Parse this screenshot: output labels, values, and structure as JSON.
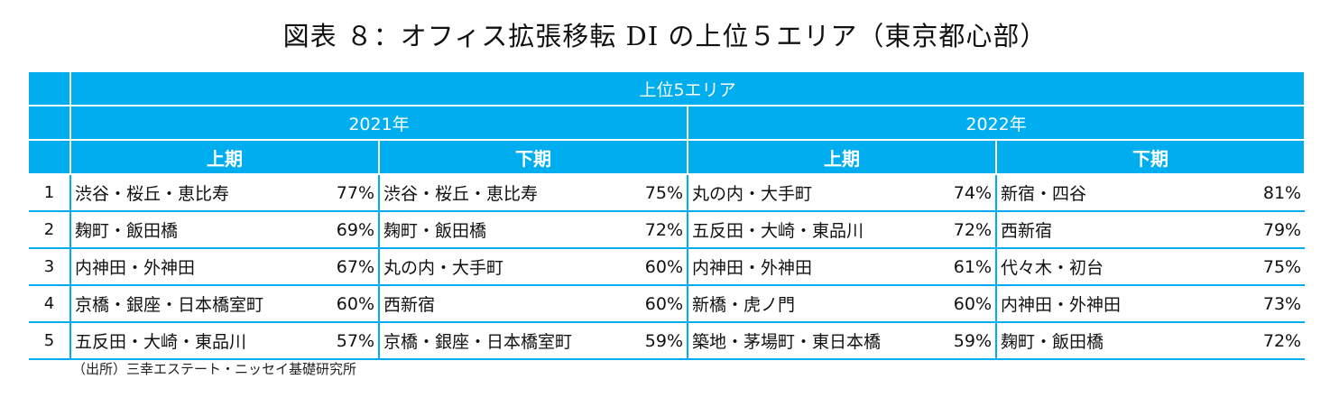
{
  "title": "図表 ８：オフィス拡張移転 DI の上位５エリア（東京都心部）",
  "header": {
    "group": "上位5エリア",
    "years": [
      "2021年",
      "2022年"
    ],
    "halves": [
      "上期",
      "下期",
      "上期",
      "下期"
    ]
  },
  "rows": [
    {
      "rank": "1",
      "cells": [
        {
          "area": "渋谷・桜丘・恵比寿",
          "pct": "77%"
        },
        {
          "area": "渋谷・桜丘・恵比寿",
          "pct": "75%"
        },
        {
          "area": "丸の内・大手町",
          "pct": "74%"
        },
        {
          "area": "新宿・四谷",
          "pct": "81%"
        }
      ]
    },
    {
      "rank": "2",
      "cells": [
        {
          "area": "麹町・飯田橋",
          "pct": "69%"
        },
        {
          "area": "麹町・飯田橋",
          "pct": "72%"
        },
        {
          "area": "五反田・大崎・東品川",
          "pct": "72%"
        },
        {
          "area": "西新宿",
          "pct": "79%"
        }
      ]
    },
    {
      "rank": "3",
      "cells": [
        {
          "area": "内神田・外神田",
          "pct": "67%"
        },
        {
          "area": "丸の内・大手町",
          "pct": "60%"
        },
        {
          "area": "内神田・外神田",
          "pct": "61%"
        },
        {
          "area": "代々木・初台",
          "pct": "75%"
        }
      ]
    },
    {
      "rank": "4",
      "cells": [
        {
          "area": "京橋・銀座・日本橋室町",
          "pct": "60%"
        },
        {
          "area": "西新宿",
          "pct": "60%"
        },
        {
          "area": "新橋・虎ノ門",
          "pct": "60%"
        },
        {
          "area": "内神田・外神田",
          "pct": "73%"
        }
      ]
    },
    {
      "rank": "5",
      "cells": [
        {
          "area": "五反田・大崎・東品川",
          "pct": "57%"
        },
        {
          "area": "京橋・銀座・日本橋室町",
          "pct": "59%"
        },
        {
          "area": "築地・茅場町・東日本橋",
          "pct": "59%"
        },
        {
          "area": "麹町・飯田橋",
          "pct": "72%"
        }
      ]
    }
  ],
  "source": "（出所）三幸エステート・ニッセイ基礎研究所"
}
